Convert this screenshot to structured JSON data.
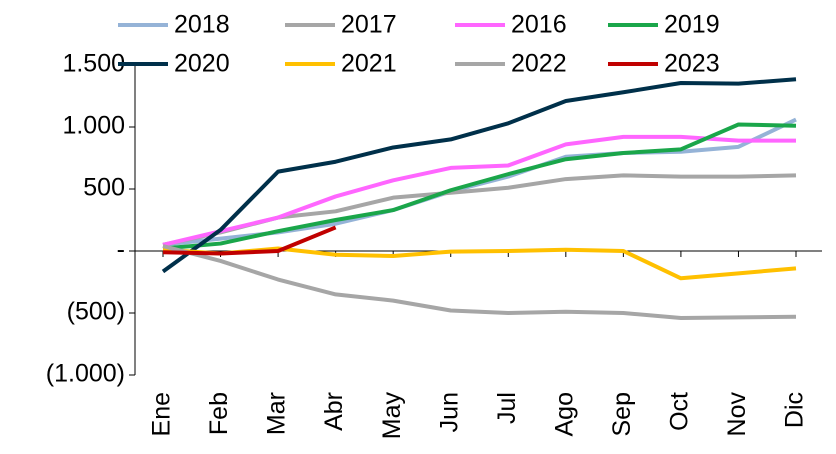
{
  "chart_data": {
    "type": "line",
    "categories": [
      "Ene",
      "Feb",
      "Mar",
      "Abr",
      "May",
      "Jun",
      "Jul",
      "Ago",
      "Sep",
      "Oct",
      "Nov",
      "Dic"
    ],
    "series": [
      {
        "name": "2018",
        "color": "#95b3d7",
        "values": [
          50,
          100,
          150,
          220,
          330,
          480,
          600,
          760,
          790,
          800,
          840,
          1060
        ]
      },
      {
        "name": "2017",
        "color": "#a6a6a6",
        "values": [
          50,
          150,
          270,
          320,
          430,
          470,
          510,
          580,
          610,
          600,
          600,
          610
        ]
      },
      {
        "name": "2016",
        "color": "#ff66ff",
        "values": [
          50,
          160,
          270,
          440,
          570,
          670,
          690,
          860,
          920,
          920,
          890,
          890
        ]
      },
      {
        "name": "2019",
        "color": "#1aa64a",
        "values": [
          20,
          60,
          160,
          250,
          330,
          490,
          620,
          740,
          790,
          820,
          1020,
          1010
        ]
      },
      {
        "name": "2020",
        "color": "#00304a",
        "values": [
          -165,
          170,
          640,
          720,
          835,
          900,
          1030,
          1210,
          1280,
          1355,
          1350,
          1385
        ]
      },
      {
        "name": "2021",
        "color": "#ffc000",
        "values": [
          10,
          -20,
          20,
          -30,
          -40,
          -5,
          0,
          10,
          0,
          -220,
          -180,
          -140
        ]
      },
      {
        "name": "2022",
        "color": "#a6a6a6",
        "values": [
          40,
          -80,
          -230,
          -350,
          -400,
          -480,
          -500,
          -490,
          -500,
          -540,
          -535,
          -530
        ]
      },
      {
        "name": "2023",
        "color": "#c00000",
        "values": [
          -10,
          -20,
          0,
          190,
          null,
          null,
          null,
          null,
          null,
          null,
          null,
          null
        ]
      }
    ],
    "ylim": [
      -1000,
      1500
    ],
    "yticks": [
      {
        "value": -1000,
        "label": "(1.000)"
      },
      {
        "value": -500,
        "label": "(500)"
      },
      {
        "value": 0,
        "label": "-"
      },
      {
        "value": 500,
        "label": "500"
      },
      {
        "value": 1000,
        "label": "1.000"
      },
      {
        "value": 1500,
        "label": "1.500"
      }
    ],
    "grid": false
  }
}
